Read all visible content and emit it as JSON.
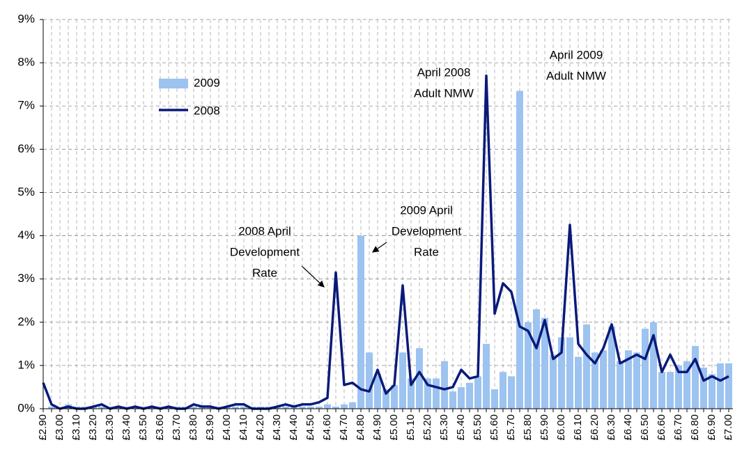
{
  "chart_data": {
    "type": "bar-line",
    "categories": [
      "£2.90",
      null,
      "£3.00",
      null,
      "£3.10",
      null,
      "£3.20",
      null,
      "£3.30",
      null,
      "£3.40",
      null,
      "£3.50",
      null,
      "£3.60",
      null,
      "£3.70",
      null,
      "£3.80",
      null,
      "£3.90",
      null,
      "£4.00",
      null,
      "£4.10",
      null,
      "£4.20",
      null,
      "£4.30",
      null,
      "£4.40",
      null,
      "£4.50",
      null,
      "£4.60",
      null,
      "£4.70",
      null,
      "£4.80",
      null,
      "£4.90",
      null,
      "£5.00",
      null,
      "£5.10",
      null,
      "£5.20",
      null,
      "£5.30",
      null,
      "£5.40",
      null,
      "£5.50",
      null,
      "£5.60",
      null,
      "£5.70",
      null,
      "£5.80",
      null,
      "£5.90",
      null,
      "£6.00",
      null,
      "£6.10",
      null,
      "£6.20",
      null,
      "£6.30",
      null,
      "£6.40",
      null,
      "£6.50",
      null,
      "£6.60",
      null,
      "£6.70",
      null,
      "£6.80",
      null,
      "£6.90",
      null,
      "£7.00"
    ],
    "series": [
      {
        "name": "2009",
        "kind": "bar",
        "color": "#9dc3f0",
        "values": [
          0,
          0.05,
          0,
          0.1,
          0.05,
          0.05,
          0.05,
          0.05,
          0.05,
          0.05,
          0.05,
          0.05,
          0.05,
          0.05,
          0.05,
          0.05,
          0.05,
          0.05,
          0.05,
          0.05,
          0.05,
          0.05,
          0.05,
          0.05,
          0.05,
          0.05,
          0.05,
          0.05,
          0.05,
          0.05,
          0.05,
          0.05,
          0.05,
          0.05,
          0.1,
          0.05,
          0.1,
          0.15,
          4.0,
          1.3,
          0.8,
          0.45,
          0.55,
          1.3,
          0.7,
          1.4,
          0.7,
          0.7,
          1.1,
          0.4,
          0.5,
          0.6,
          0.75,
          1.5,
          0.45,
          0.85,
          0.75,
          7.35,
          2.0,
          2.3,
          2.1,
          1.25,
          1.65,
          1.65,
          1.2,
          1.95,
          1.3,
          1.35,
          1.9,
          1.1,
          1.35,
          1.3,
          1.85,
          2.0,
          0.85,
          0.85,
          1.0,
          1.1,
          1.45,
          0.95,
          0.8,
          1.05,
          1.05
        ]
      },
      {
        "name": "2008",
        "kind": "line",
        "color": "#0a1a7a",
        "values": [
          0.6,
          0.1,
          0,
          0.05,
          0,
          0,
          0.05,
          0.1,
          0,
          0.05,
          0,
          0.05,
          0,
          0.05,
          0,
          0.05,
          0,
          0,
          0.1,
          0.05,
          0.05,
          0,
          0.05,
          0.1,
          0.1,
          0,
          0,
          0,
          0.05,
          0.1,
          0.05,
          0.1,
          0.1,
          0.15,
          0.25,
          3.15,
          0.55,
          0.6,
          0.45,
          0.4,
          0.9,
          0.35,
          0.55,
          2.85,
          0.55,
          0.85,
          0.55,
          0.5,
          0.45,
          0.5,
          0.9,
          0.7,
          0.75,
          7.7,
          2.2,
          2.9,
          2.7,
          1.9,
          1.8,
          1.4,
          2.05,
          1.15,
          1.3,
          4.25,
          1.5,
          1.25,
          1.05,
          1.4,
          1.95,
          1.05,
          1.15,
          1.25,
          1.15,
          1.7,
          0.85,
          1.25,
          0.85,
          0.85,
          1.15,
          0.65,
          0.75,
          0.65,
          0.75
        ]
      }
    ],
    "ylim": [
      0,
      9
    ],
    "yticks": [
      {
        "value": 0,
        "label": "0%"
      },
      {
        "value": 1,
        "label": "1%"
      },
      {
        "value": 2,
        "label": "2%"
      },
      {
        "value": 3,
        "label": "3%"
      },
      {
        "value": 4,
        "label": "4%"
      },
      {
        "value": 5,
        "label": "5%"
      },
      {
        "value": 6,
        "label": "6%"
      },
      {
        "value": 7,
        "label": "7%"
      },
      {
        "value": 8,
        "label": "8%"
      },
      {
        "value": 9,
        "label": "9%"
      }
    ],
    "grid": true,
    "annotations": [
      {
        "lines": [
          "2008 April",
          "Development",
          "Rate"
        ]
      },
      {
        "lines": [
          "2009 April",
          "Development",
          "Rate"
        ]
      },
      {
        "lines": [
          "April 2008",
          "Adult NMW"
        ]
      },
      {
        "lines": [
          "April 2009",
          "Adult NMW"
        ]
      }
    ]
  }
}
